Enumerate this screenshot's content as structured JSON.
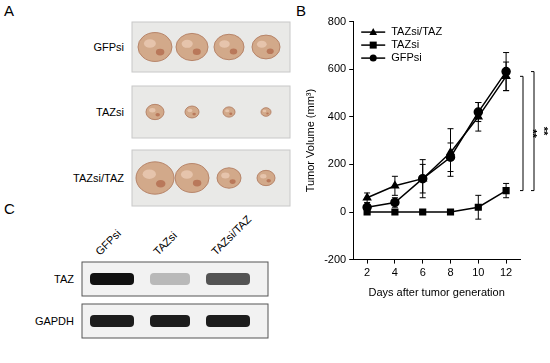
{
  "panel_labels": [
    "A",
    "B",
    "C"
  ],
  "tumor_photos": {
    "rows": [
      "GFPsi",
      "TAZsi",
      "TAZsi/TAZ"
    ]
  },
  "western_blot": {
    "lanes": [
      "GFPsi",
      "TAZsi",
      "TAZsi/TAZ"
    ],
    "rows": [
      "TAZ",
      "GAPDH"
    ]
  },
  "chart_data": {
    "type": "line",
    "x_label": "Days after tumor generation",
    "y_label": "Tumor Volume (mm³)",
    "x": [
      2,
      4,
      6,
      8,
      10,
      12
    ],
    "xlim": [
      1,
      13
    ],
    "xticks": [
      2,
      4,
      6,
      8,
      10,
      12
    ],
    "ylim": [
      -200,
      800
    ],
    "yticks": [
      -200,
      0,
      200,
      400,
      600,
      800
    ],
    "grid": false,
    "legend": "top-left",
    "series": [
      {
        "name": "TAZsi/TAZ",
        "color": "#000000",
        "marker": "triangle",
        "values": [
          60,
          110,
          140,
          250,
          400,
          570
        ],
        "errors": [
          20,
          40,
          80,
          100,
          60,
          60
        ]
      },
      {
        "name": "TAZsi",
        "color": "#000000",
        "marker": "square",
        "values": [
          0,
          0,
          0,
          0,
          20,
          90
        ],
        "errors": [
          0,
          0,
          0,
          0,
          50,
          30
        ]
      },
      {
        "name": "GFPsi",
        "color": "#000000",
        "marker": "circle",
        "values": [
          20,
          40,
          140,
          230,
          420,
          590
        ],
        "errors": [
          10,
          20,
          60,
          60,
          40,
          80
        ]
      }
    ],
    "annotations": [
      {
        "text": "**",
        "from": "TAZsi/TAZ",
        "to": "TAZsi"
      },
      {
        "text": "**",
        "from": "GFPsi",
        "to": "TAZsi"
      }
    ]
  }
}
